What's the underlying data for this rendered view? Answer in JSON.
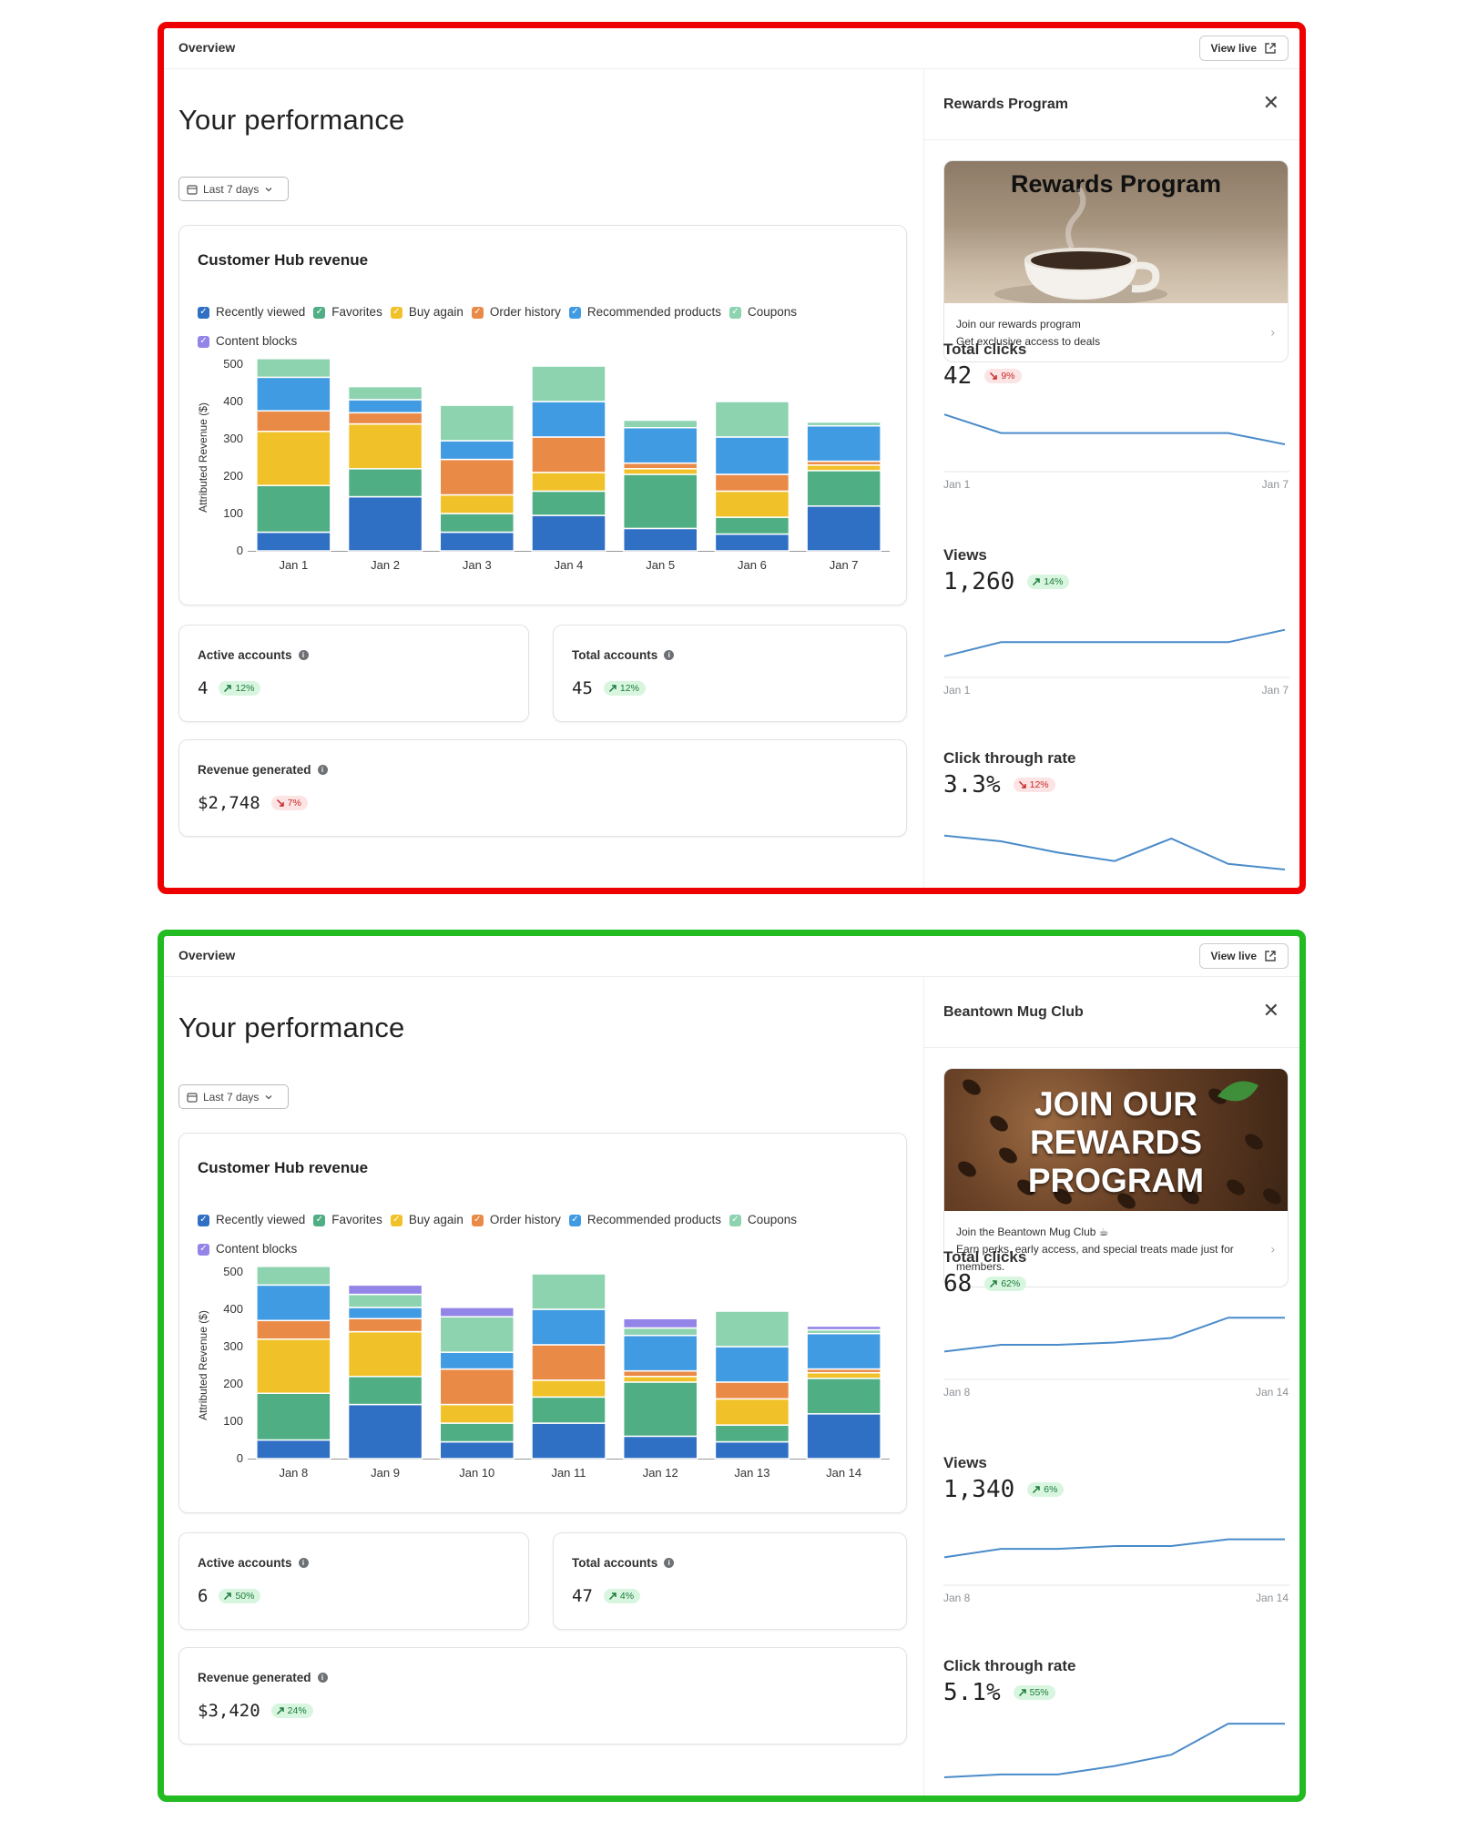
{
  "panels": [
    {
      "topbar": {
        "title": "Overview",
        "view_live_label": "View live"
      },
      "page_title": "Your performance",
      "date_filter": "Last 7 days",
      "chart_card_title": "Customer Hub revenue",
      "legend": [
        {
          "label": "Recently viewed",
          "color": "#2f6fc4"
        },
        {
          "label": "Favorites",
          "color": "#4fae84"
        },
        {
          "label": "Buy again",
          "color": "#f1c12a"
        },
        {
          "label": "Order history",
          "color": "#ea8a47"
        },
        {
          "label": "Recommended products",
          "color": "#419be2"
        },
        {
          "label": "Coupons",
          "color": "#8dd3b0"
        },
        {
          "label": "Content blocks",
          "color": "#9384e8"
        }
      ],
      "chart_data": {
        "type": "bar",
        "stacked": true,
        "ylabel": "Attributed Revenue ($)",
        "ylim": [
          0,
          500
        ],
        "yticks": [
          "500",
          "400",
          "300",
          "200",
          "100",
          "0"
        ],
        "categories": [
          "Jan 1",
          "Jan 2",
          "Jan 3",
          "Jan 4",
          "Jan 5",
          "Jan 6",
          "Jan 7"
        ],
        "series": [
          {
            "name": "Recently viewed",
            "values": [
              50,
              145,
              50,
              95,
              60,
              45,
              120
            ]
          },
          {
            "name": "Favorites",
            "values": [
              125,
              75,
              50,
              65,
              145,
              45,
              95
            ]
          },
          {
            "name": "Buy again",
            "values": [
              145,
              120,
              50,
              50,
              15,
              70,
              15
            ]
          },
          {
            "name": "Order history",
            "values": [
              55,
              30,
              95,
              95,
              15,
              45,
              10
            ]
          },
          {
            "name": "Recommended products",
            "values": [
              90,
              35,
              50,
              95,
              95,
              100,
              95
            ]
          },
          {
            "name": "Coupons",
            "values": [
              50,
              35,
              95,
              95,
              20,
              95,
              10
            ]
          },
          {
            "name": "Content blocks",
            "values": [
              0,
              0,
              0,
              0,
              0,
              0,
              0
            ]
          }
        ]
      },
      "metrics": {
        "active_accounts": {
          "label": "Active accounts",
          "value": "4",
          "change": "12%",
          "direction": "up"
        },
        "total_accounts": {
          "label": "Total accounts",
          "value": "45",
          "change": "12%",
          "direction": "up"
        },
        "revenue_generated": {
          "label": "Revenue generated",
          "value": "$2,748",
          "change": "7%",
          "direction": "down"
        }
      },
      "side": {
        "title": "Rewards Program",
        "promo": {
          "image_headline": "Rewards Program",
          "image_style": "coffee-cup",
          "line1": "Join our rewards program",
          "line2": "Get exclusive access to deals"
        },
        "stats": [
          {
            "title": "Total clicks",
            "value": "42",
            "change": "9%",
            "direction": "down",
            "start": "Jan 1",
            "end": "Jan 7",
            "trend": [
              0.82,
              0.49,
              0.49,
              0.49,
              0.49,
              0.49,
              0.29
            ]
          },
          {
            "title": "Views",
            "value": "1,260",
            "change": "14%",
            "direction": "up",
            "start": "Jan 1",
            "end": "Jan 7",
            "trend": [
              0.18,
              0.43,
              0.43,
              0.43,
              0.43,
              0.43,
              0.65
            ]
          },
          {
            "title": "Click through rate",
            "value": "3.3%",
            "change": "12%",
            "direction": "down",
            "start": "",
            "end": "",
            "trend": [
              0.6,
              0.5,
              0.3,
              0.15,
              0.55,
              0.1,
              0.0
            ]
          }
        ]
      }
    },
    {
      "topbar": {
        "title": "Overview",
        "view_live_label": "View live"
      },
      "page_title": "Your performance",
      "date_filter": "Last 7 days",
      "chart_card_title": "Customer Hub revenue",
      "legend": [
        {
          "label": "Recently viewed",
          "color": "#2f6fc4"
        },
        {
          "label": "Favorites",
          "color": "#4fae84"
        },
        {
          "label": "Buy again",
          "color": "#f1c12a"
        },
        {
          "label": "Order history",
          "color": "#ea8a47"
        },
        {
          "label": "Recommended products",
          "color": "#419be2"
        },
        {
          "label": "Coupons",
          "color": "#8dd3b0"
        },
        {
          "label": "Content blocks",
          "color": "#9384e8"
        }
      ],
      "chart_data": {
        "type": "bar",
        "stacked": true,
        "ylabel": "Attributed Revenue ($)",
        "ylim": [
          0,
          500
        ],
        "yticks": [
          "500",
          "400",
          "300",
          "200",
          "100",
          "0"
        ],
        "categories": [
          "Jan 8",
          "Jan 9",
          "Jan 10",
          "Jan 11",
          "Jan 12",
          "Jan 13",
          "Jan 14"
        ],
        "series": [
          {
            "name": "Recently viewed",
            "values": [
              50,
              145,
              45,
              95,
              60,
              45,
              120
            ]
          },
          {
            "name": "Favorites",
            "values": [
              125,
              75,
              50,
              70,
              145,
              45,
              95
            ]
          },
          {
            "name": "Buy again",
            "values": [
              145,
              120,
              50,
              45,
              15,
              70,
              15
            ]
          },
          {
            "name": "Order history",
            "values": [
              50,
              35,
              95,
              95,
              15,
              45,
              10
            ]
          },
          {
            "name": "Recommended products",
            "values": [
              95,
              30,
              45,
              95,
              95,
              95,
              95
            ]
          },
          {
            "name": "Coupons",
            "values": [
              50,
              35,
              95,
              95,
              20,
              95,
              10
            ]
          },
          {
            "name": "Content blocks",
            "values": [
              0,
              25,
              25,
              0,
              25,
              0,
              10
            ]
          }
        ]
      },
      "metrics": {
        "active_accounts": {
          "label": "Active accounts",
          "value": "6",
          "change": "50%",
          "direction": "up"
        },
        "total_accounts": {
          "label": "Total accounts",
          "value": "47",
          "change": "4%",
          "direction": "up"
        },
        "revenue_generated": {
          "label": "Revenue generated",
          "value": "$3,420",
          "change": "24%",
          "direction": "up"
        }
      },
      "side": {
        "title": "Beantown Mug Club",
        "promo": {
          "image_headline": "JOIN OUR REWARDS PROGRAM",
          "image_style": "coffee-beans",
          "line1": "Join the Beantown Mug Club ☕",
          "line2": "Earn perks, early access, and special treats made just for members."
        },
        "stats": [
          {
            "title": "Total clicks",
            "value": "68",
            "change": "62%",
            "direction": "up",
            "start": "Jan 8",
            "end": "Jan 14",
            "trend": [
              0.3,
              0.42,
              0.42,
              0.46,
              0.54,
              0.9,
              0.9
            ]
          },
          {
            "title": "Views",
            "value": "1,340",
            "change": "6%",
            "direction": "up",
            "start": "Jan 8",
            "end": "Jan 14",
            "trend": [
              0.3,
              0.45,
              0.45,
              0.5,
              0.5,
              0.62,
              0.62
            ]
          },
          {
            "title": "Click through rate",
            "value": "5.1%",
            "change": "55%",
            "direction": "up",
            "start": "",
            "end": "",
            "trend": [
              0.0,
              0.05,
              0.05,
              0.2,
              0.4,
              0.95,
              0.95
            ]
          }
        ]
      }
    }
  ]
}
